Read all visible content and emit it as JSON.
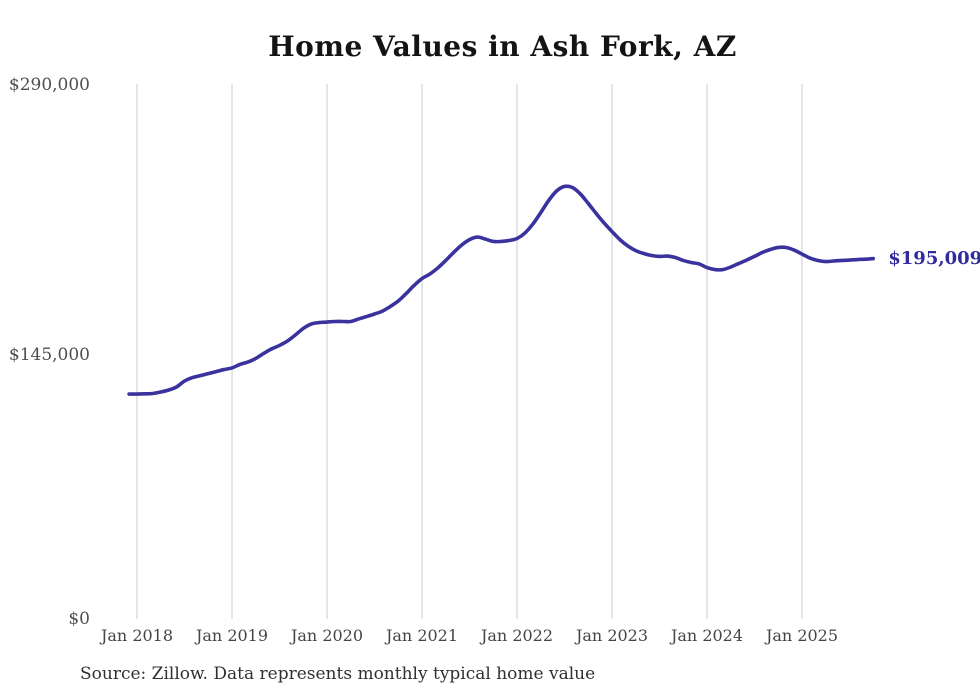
{
  "title": "Home Values in Ash Fork, AZ",
  "source_note": "Source: Zillow. Data represents monthly typical home value",
  "latest_value_label": "$195,009",
  "colors": {
    "line": "#3a339e",
    "latest_label": "#322b9d",
    "grid": "#cccccc",
    "title": "#141414",
    "axis_labels": "#4f4f4f",
    "source": "#303030",
    "background": "#ffffff"
  },
  "y_axis": {
    "labels": [
      "$290,000",
      "$145,000",
      "$0"
    ],
    "values": [
      290000,
      145000,
      0
    ]
  },
  "x_axis": {
    "tick_labels": [
      "Jan 2018",
      "Jan 2019",
      "Jan 2020",
      "Jan 2021",
      "Jan 2022",
      "Jan 2023",
      "Jan 2024",
      "Jan 2025"
    ]
  },
  "chart_data": {
    "type": "line",
    "title": "Home Values in Ash Fork, AZ",
    "frequency": "monthly",
    "unit": "USD",
    "x_start": "2017-12",
    "x_end": "2025-10",
    "x_ticks": [
      "2018-01",
      "2019-01",
      "2020-01",
      "2021-01",
      "2022-01",
      "2023-01",
      "2024-01",
      "2025-01"
    ],
    "ylim": [
      0,
      290000
    ],
    "y_ticks": [
      0,
      145000,
      290000
    ],
    "grid": "vertical-only",
    "legend": "none",
    "latest_value": 195009,
    "values": [
      120900,
      120900,
      121000,
      121200,
      122000,
      123100,
      124800,
      128000,
      129900,
      131000,
      132100,
      133200,
      134300,
      135200,
      137100,
      138400,
      140400,
      143100,
      145600,
      147500,
      149900,
      153200,
      156800,
      159200,
      160000,
      160300,
      160600,
      160600,
      160600,
      162000,
      163300,
      164700,
      166300,
      168800,
      171800,
      175900,
      180300,
      184100,
      186600,
      189900,
      194000,
      198400,
      202400,
      205400,
      206800,
      205700,
      204400,
      204400,
      204900,
      206000,
      209000,
      213900,
      220200,
      226800,
      232000,
      234500,
      233900,
      230400,
      225200,
      219700,
      214500,
      209800,
      205400,
      201900,
      199400,
      197800,
      196700,
      196200,
      196400,
      195600,
      194000,
      192900,
      192100,
      190100,
      189000,
      189000,
      190400,
      192300,
      194200,
      196200,
      198400,
      200000,
      201100,
      201100,
      199700,
      197500,
      195300,
      194000,
      193400,
      193700,
      194000,
      194200,
      194500,
      194700,
      195009
    ]
  }
}
